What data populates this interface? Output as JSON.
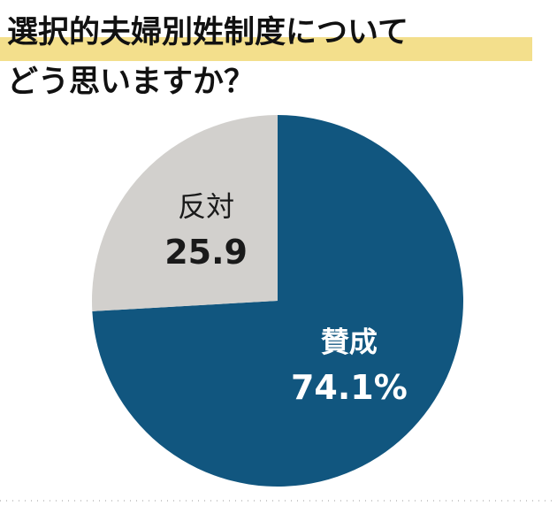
{
  "chart_data": {
    "type": "pie",
    "title": [
      "選択的夫婦別姓制度について",
      "どう思いますか？"
    ],
    "categories": [
      "賛成",
      "反対"
    ],
    "values": [
      74.1,
      25.9
    ],
    "value_labels": [
      "74.1%",
      "25.9"
    ],
    "colors": [
      "#11567f",
      "#d2d0cd"
    ],
    "label_colors": [
      "#ffffff",
      "#1a1a1a"
    ]
  }
}
